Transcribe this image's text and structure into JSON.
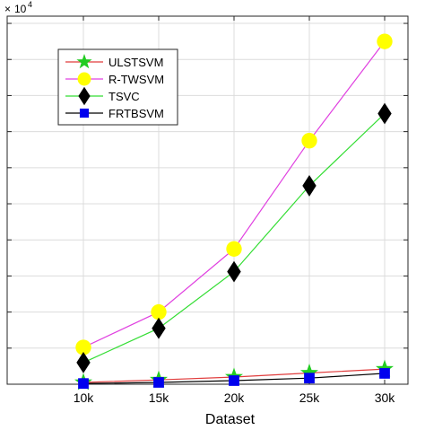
{
  "chart_data": {
    "type": "line",
    "xlabel": "Dataset",
    "ylabel": "",
    "y_exponent_base": "10",
    "y_exponent_power": "4",
    "categories": [
      "10k",
      "15k",
      "20k",
      "25k",
      "30k"
    ],
    "ylim": [
      0,
      10.2
    ],
    "yticks": [
      0,
      1,
      2,
      3,
      4,
      5,
      6,
      7,
      8,
      9,
      10
    ],
    "grid": true,
    "legend_position": "top-left",
    "series": [
      {
        "name": "ULSTSVM",
        "color": "#e03c3c",
        "marker_color": "#22cc22",
        "marker": "star",
        "values": [
          0.05,
          0.12,
          0.2,
          0.31,
          0.42
        ]
      },
      {
        "name": "R-TWSVM",
        "color": "#e040e0",
        "marker_color": "#ffff00",
        "marker": "circle",
        "values": [
          1.02,
          2.0,
          3.75,
          6.75,
          9.5
        ]
      },
      {
        "name": "TSVC",
        "color": "#33dd33",
        "marker_color": "#000000",
        "marker": "diamond",
        "values": [
          0.6,
          1.55,
          3.12,
          5.5,
          7.5
        ]
      },
      {
        "name": "FRTBSVM",
        "color": "#000000",
        "marker_color": "#0000ee",
        "marker": "square",
        "values": [
          0.02,
          0.05,
          0.1,
          0.17,
          0.3
        ]
      }
    ]
  }
}
